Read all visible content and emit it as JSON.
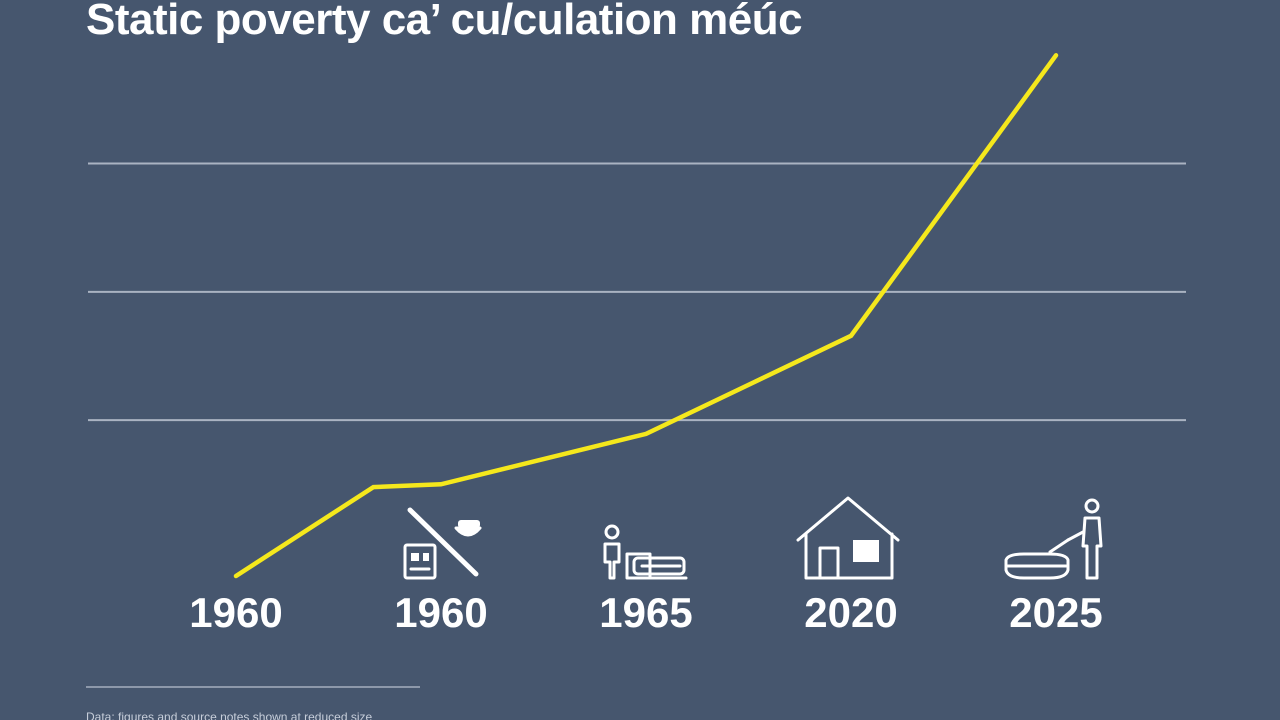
{
  "chart_data": {
    "type": "line",
    "title": "Static poverty ca’ cu/culation méúc",
    "xlabel": "",
    "ylabel": "",
    "categories": [
      "1960",
      "1960",
      "1965",
      "2020",
      "2025"
    ],
    "series": [
      {
        "color": "#f5e81c",
        "points": [
          {
            "x": 0.0,
            "y": 0.0
          },
          {
            "x": 0.67,
            "y": 0.97
          },
          {
            "x": 1.0,
            "y": 1.0
          },
          {
            "x": 2.0,
            "y": 1.55
          },
          {
            "x": 3.0,
            "y": 2.62
          },
          {
            "x": 4.0,
            "y": 5.68
          }
        ]
      }
    ],
    "xlim": [
      0,
      4
    ],
    "ylim": [
      0,
      6
    ],
    "gridlines_y": [
      1.7,
      3.1,
      4.5
    ],
    "grid": true,
    "legend": "none",
    "icons": [
      "id-card-icon",
      "no-bowl-icon",
      "person-with-bed-icon",
      "house-icon",
      "person-with-basin-icon"
    ]
  },
  "footer": {
    "text": "Data: figures and source notes shown at reduced size"
  },
  "colors": {
    "background": "#46566e",
    "line": "#f5e81c",
    "grid": "#aab3c2",
    "text": "#ffffff"
  }
}
